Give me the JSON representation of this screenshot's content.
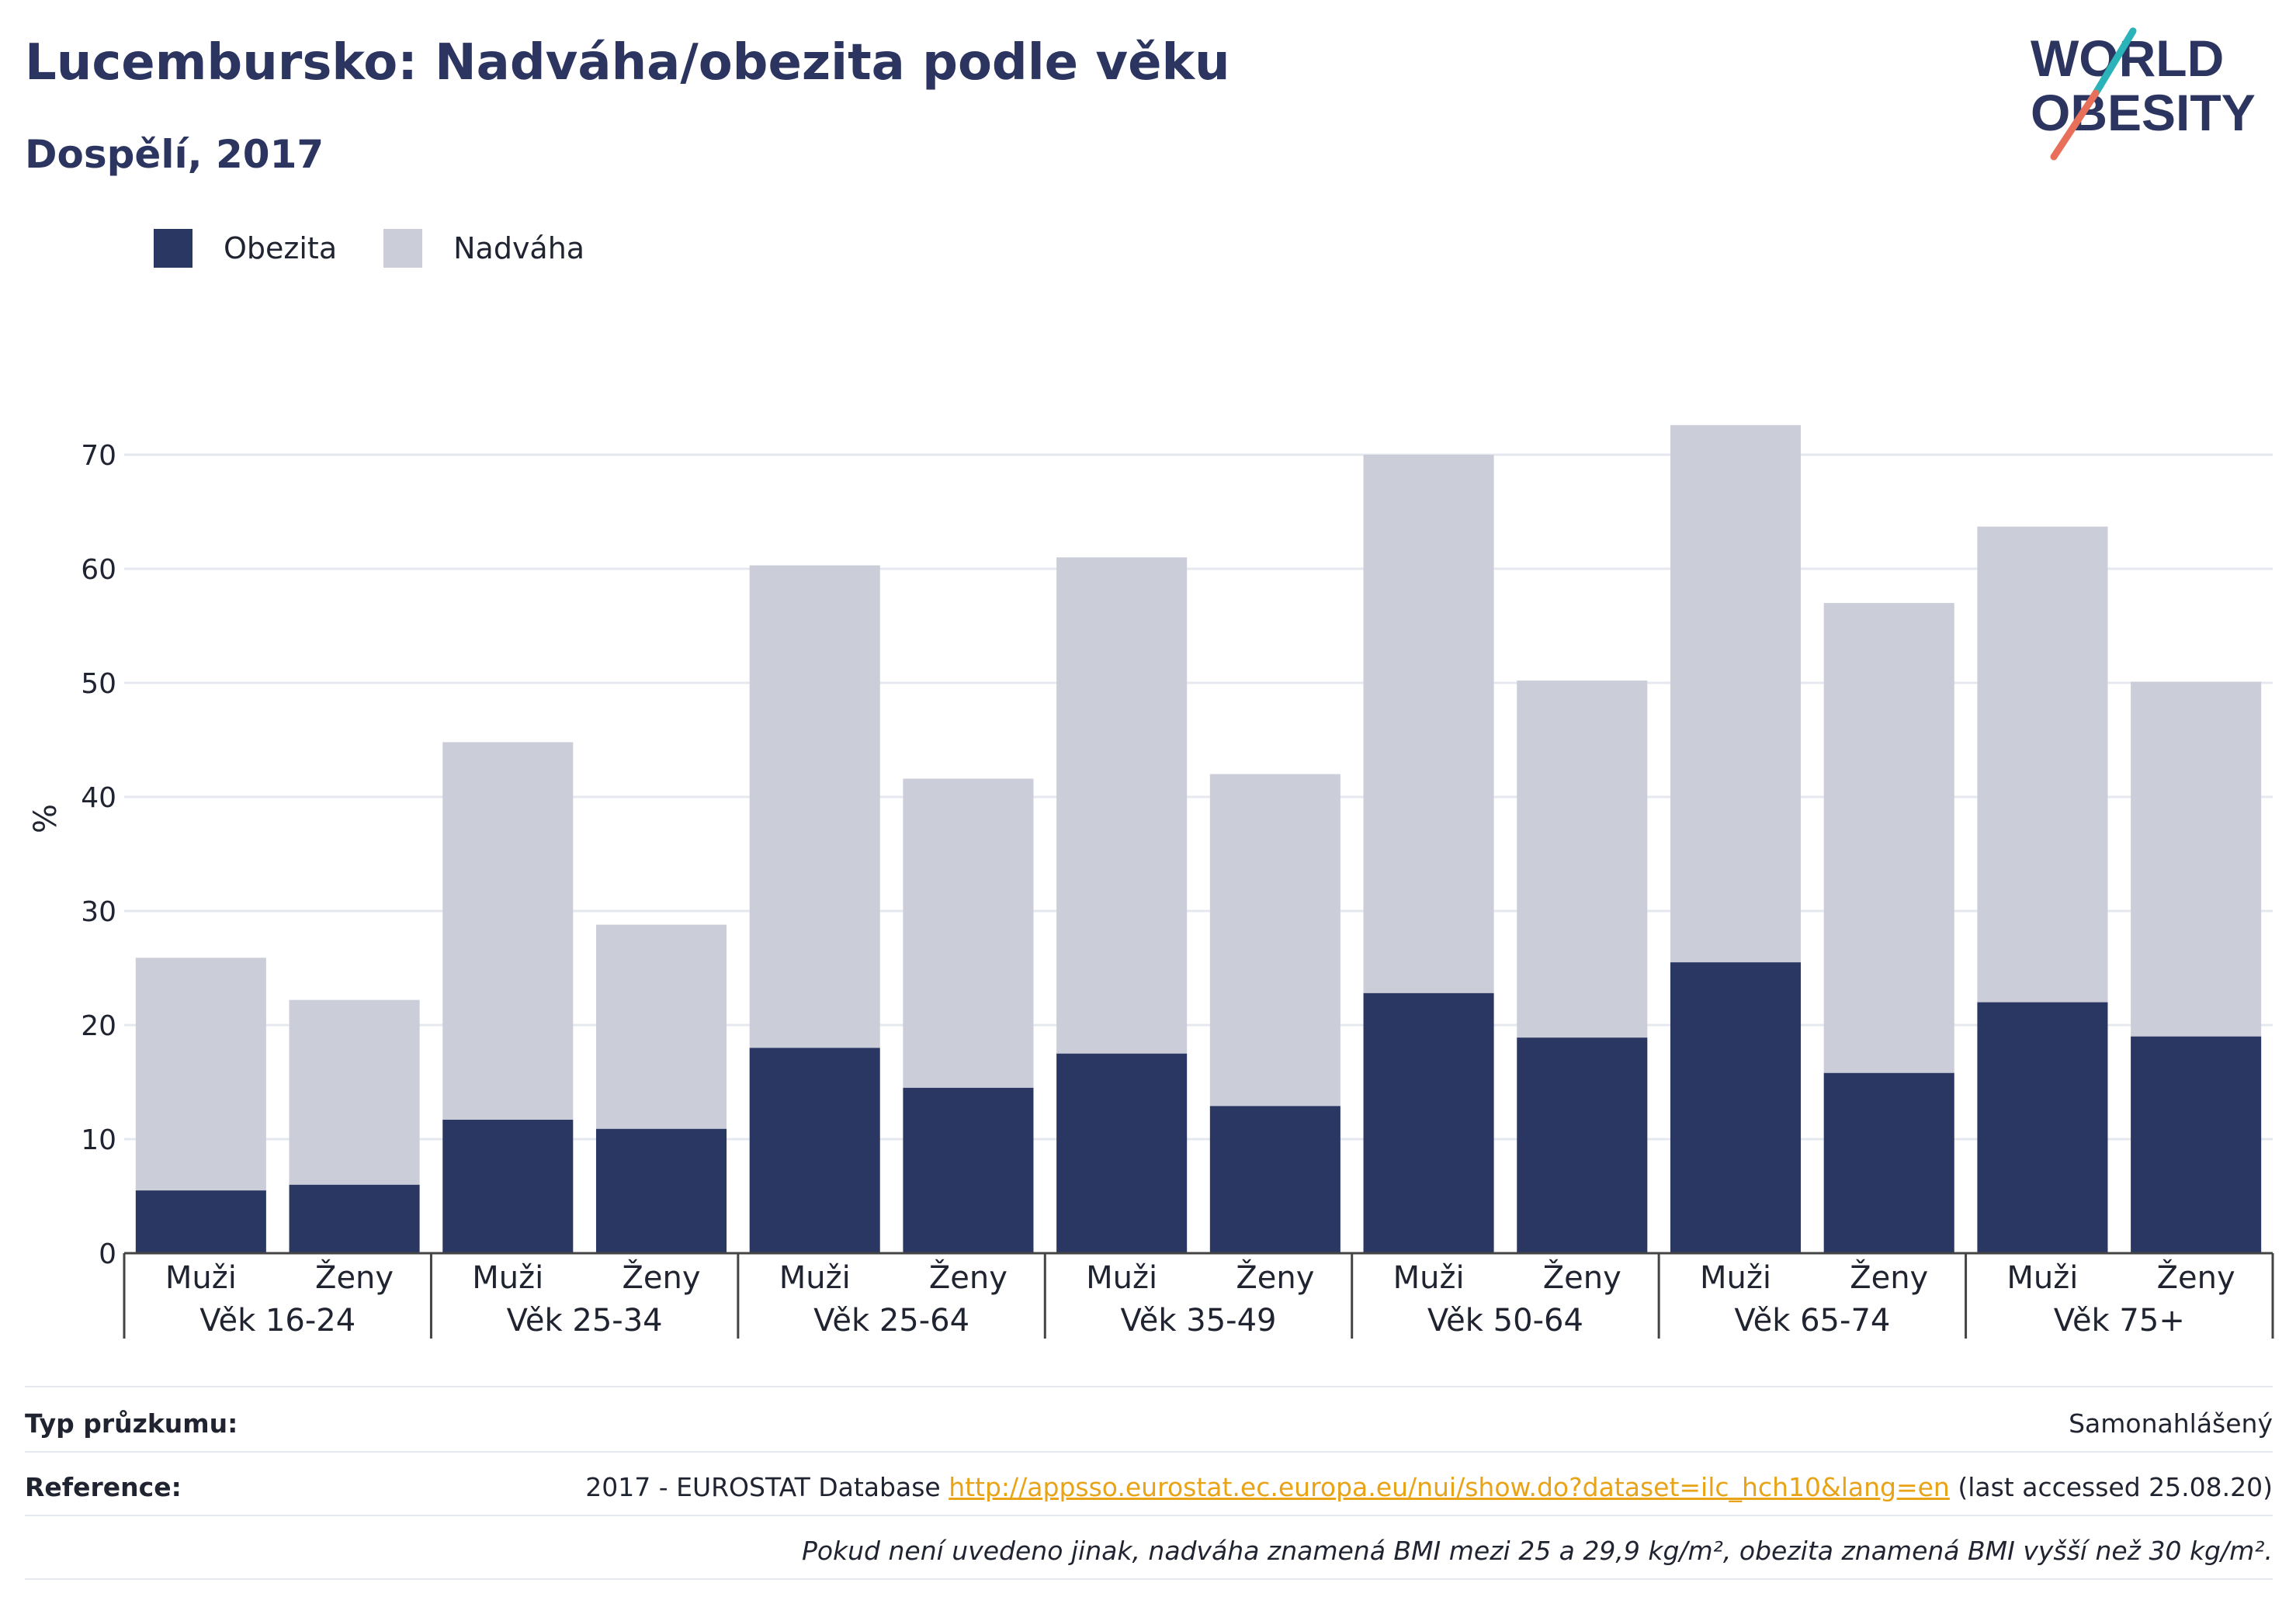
{
  "header": {
    "title": "Lucembursko: Nadváha/obezita podle věku",
    "subtitle": "Dospělí, 2017"
  },
  "logo": {
    "line1": "WORLD",
    "line2": "OBESITY"
  },
  "colors": {
    "obesity": "#2b3763",
    "overweight": "#cbcdd9",
    "title": "#2b3560",
    "link": "#e8a317",
    "logo_slash_top": "#2ab3b8",
    "logo_slash_bottom": "#e8705a"
  },
  "chart_data": {
    "type": "bar",
    "stacked": true,
    "ylabel": "%",
    "ylim": [
      0,
      75
    ],
    "yticks": [
      0,
      10,
      20,
      30,
      40,
      50,
      60,
      70
    ],
    "grid": true,
    "legend_position": "top-left",
    "groups": [
      "Věk 16-24",
      "Věk 25-34",
      "Věk 25-64",
      "Věk 35-49",
      "Věk 50-64",
      "Věk 65-74",
      "Věk 75+"
    ],
    "sexes": [
      "Muži",
      "Ženy"
    ],
    "series": [
      {
        "name": "Obezita",
        "values": [
          5.5,
          6.0,
          11.7,
          10.9,
          18.0,
          14.5,
          17.5,
          12.9,
          22.8,
          18.9,
          25.5,
          15.8,
          22.0,
          19.0
        ]
      },
      {
        "name": "Nadváha",
        "values": [
          20.4,
          16.2,
          33.1,
          17.9,
          42.3,
          27.1,
          43.5,
          29.1,
          47.2,
          31.3,
          47.1,
          41.2,
          41.7,
          31.1
        ]
      }
    ]
  },
  "footer": {
    "survey_label": "Typ průzkumu:",
    "survey_value": "Samonahlášený",
    "reference_label": "Reference:",
    "reference_prefix": "2017 - EUROSTAT Database ",
    "reference_link": "http://appsso.eurostat.ec.europa.eu/nui/show.do?dataset=ilc_hch10&lang=en",
    "reference_suffix": " (last accessed 25.08.20)",
    "note": "Pokud není uvedeno jinak, nadváha znamená BMI mezi 25 a 29,9 kg/m², obezita znamená BMI vyšší než 30 kg/m²."
  }
}
